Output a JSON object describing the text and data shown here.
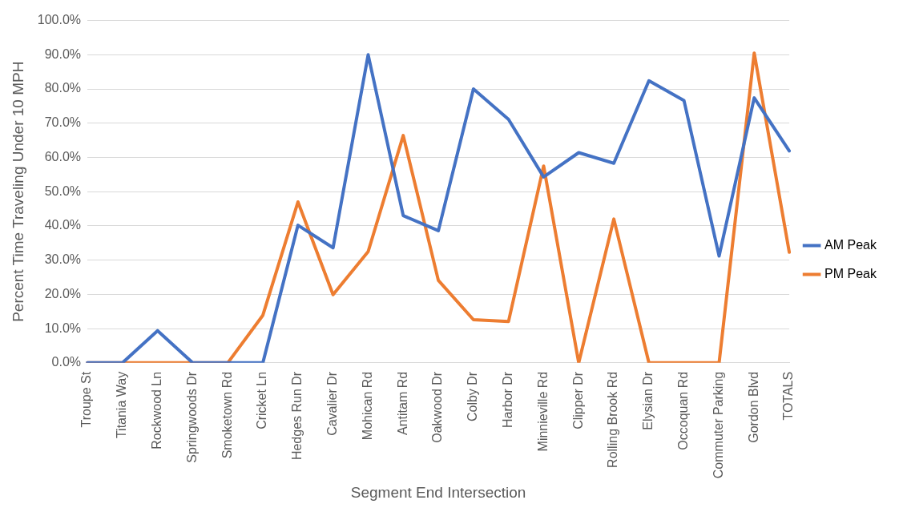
{
  "chart_data": {
    "type": "line",
    "xlabel": "Segment End Intersection",
    "ylabel": "Percent Time Traveling Under 10 MPH",
    "categories": [
      "Troupe St",
      "Titania Way",
      "Rockwood Ln",
      "Springwoods Dr",
      "Smoketown Rd",
      "Cricket Ln",
      "Hedges Run Dr",
      "Cavalier Dr",
      "Mohican Rd",
      "Antitam Rd",
      "Oakwood Dr",
      "Colby Dr",
      "Harbor Dr",
      "Minnieville Rd",
      "Clipper Dr",
      "Rolling Brook Rd",
      "Elysian Dr",
      "Occoquan Rd",
      "Commuter Parking",
      "Gordon Blvd",
      "TOTALS"
    ],
    "series": [
      {
        "name": "AM Peak",
        "color": "#4472c4",
        "values": [
          0,
          0,
          9.4,
          0,
          0,
          0,
          40.2,
          33.6,
          90,
          43,
          38.6,
          80,
          71.1,
          54.3,
          61.4,
          58.3,
          82.4,
          76.6,
          31.2,
          77.4,
          61.9
        ]
      },
      {
        "name": "PM Peak",
        "color": "#ed7d31",
        "values": [
          0,
          0,
          0,
          0,
          0,
          13.9,
          47,
          19.9,
          32.5,
          66.4,
          24.1,
          12.6,
          12.1,
          57.5,
          0,
          42,
          0,
          0,
          0,
          90.5,
          32.3
        ]
      }
    ],
    "ylim": [
      0,
      100
    ],
    "yticks": [
      {
        "value": 0,
        "label": "0.0%"
      },
      {
        "value": 10,
        "label": "10.0%"
      },
      {
        "value": 20,
        "label": "20.0%"
      },
      {
        "value": 30,
        "label": "30.0%"
      },
      {
        "value": 40,
        "label": "40.0%"
      },
      {
        "value": 50,
        "label": "50.0%"
      },
      {
        "value": 60,
        "label": "60.0%"
      },
      {
        "value": 70,
        "label": "70.0%"
      },
      {
        "value": 80,
        "label": "80.0%"
      },
      {
        "value": 90,
        "label": "90.0%"
      },
      {
        "value": 100,
        "label": "100.0%"
      }
    ],
    "grid": "y",
    "legend": "right",
    "marker": "none",
    "line_style": "solid"
  }
}
